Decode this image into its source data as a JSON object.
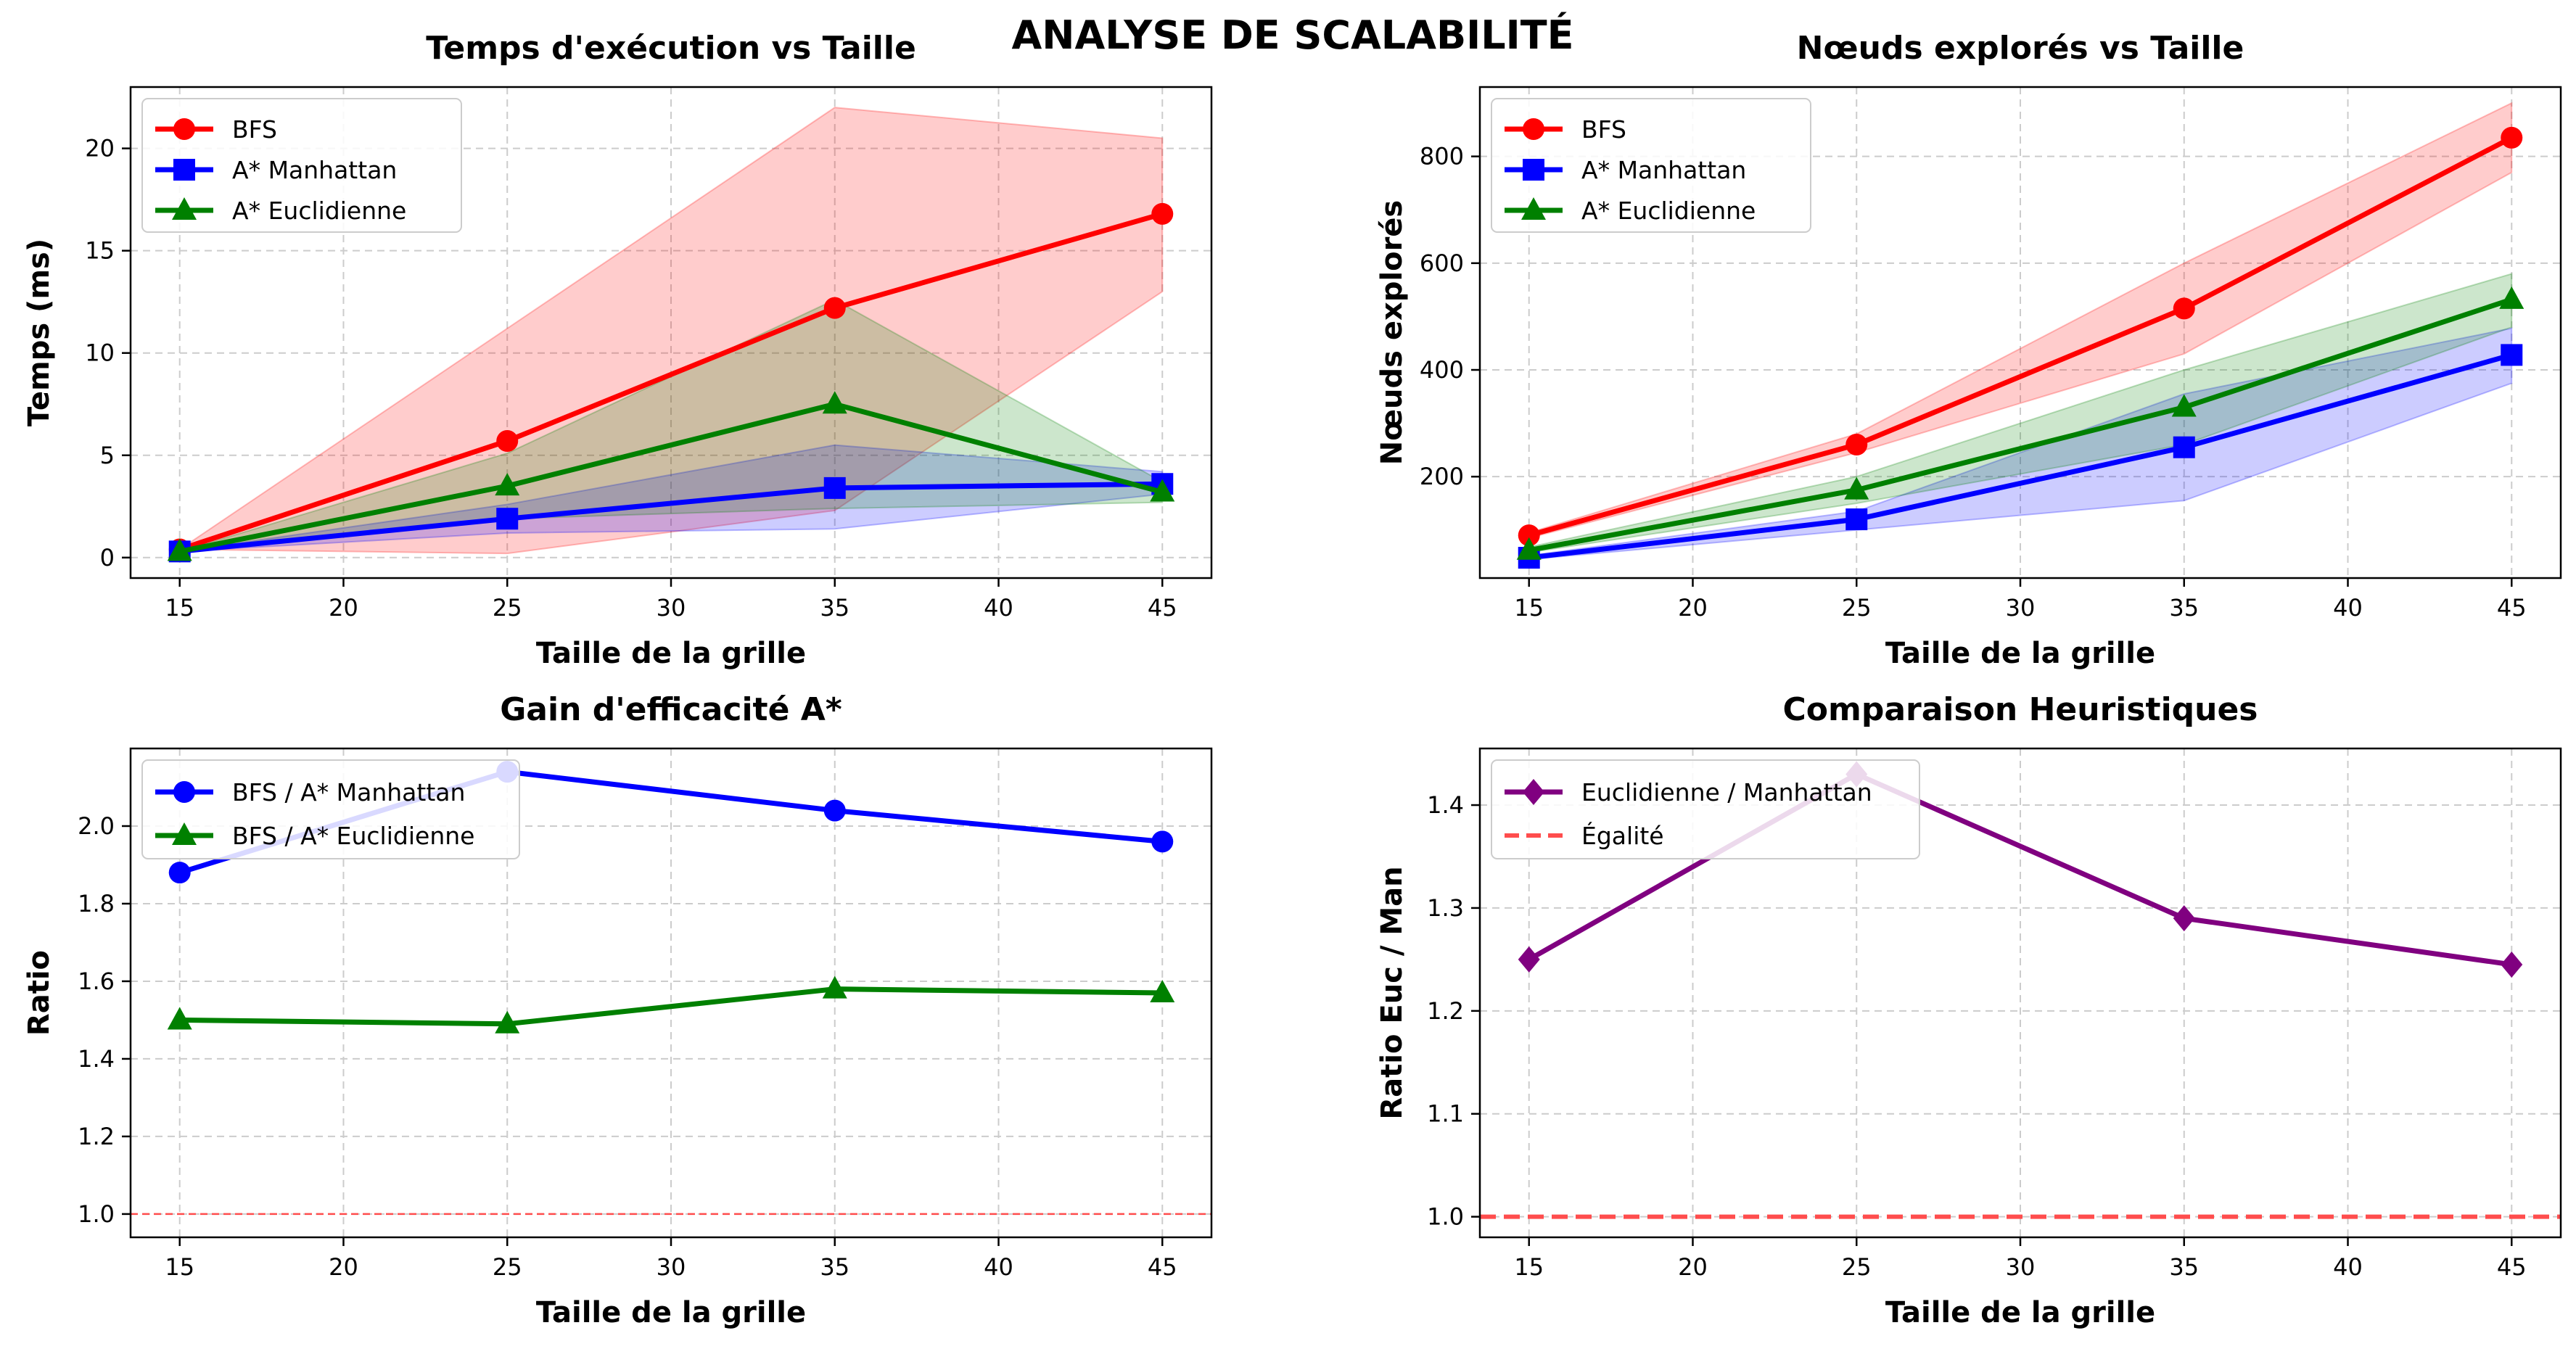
{
  "suptitle": "ANALYSE DE SCALABILITÉ",
  "colors": {
    "bfs": "#ff0000",
    "manhattan": "#0000ff",
    "euclid": "#008000",
    "ratio": "#800080",
    "equality": "#ff4d4d",
    "grid": "#b0b0b0"
  },
  "chart_data": [
    {
      "type": "line",
      "title": "Temps d'exécution vs Taille",
      "xlabel": "Taille de la grille",
      "ylabel": "Temps (ms)",
      "x": [
        15,
        25,
        35,
        45
      ],
      "xlim": [
        13.5,
        46.5
      ],
      "ylim": [
        -1.0,
        23.0
      ],
      "xticks": [
        15,
        20,
        25,
        30,
        35,
        40,
        45
      ],
      "yticks": [
        0,
        5,
        10,
        15,
        20
      ],
      "grid": true,
      "legend": "upper left",
      "series": [
        {
          "name": "BFS",
          "values": [
            0.4,
            5.7,
            12.2,
            16.8
          ],
          "band_low": [
            0.4,
            0.2,
            2.3,
            13.0
          ],
          "band_high": [
            0.4,
            11.2,
            22.0,
            20.5
          ],
          "marker": "circle",
          "color": "#ff0000"
        },
        {
          "name": "A* Manhattan",
          "values": [
            0.3,
            1.9,
            3.4,
            3.6
          ],
          "band_low": [
            0.3,
            1.2,
            1.4,
            3.1
          ],
          "band_high": [
            0.3,
            2.6,
            5.5,
            4.2
          ],
          "marker": "square",
          "color": "#0000ff"
        },
        {
          "name": "A* Euclidienne",
          "values": [
            0.3,
            3.5,
            7.5,
            3.2
          ],
          "band_low": [
            0.3,
            1.9,
            2.4,
            2.7
          ],
          "band_high": [
            0.3,
            5.1,
            12.6,
            3.7
          ],
          "marker": "triangle",
          "color": "#008000"
        }
      ]
    },
    {
      "type": "line",
      "title": "Nœuds explorés vs Taille",
      "xlabel": "Taille de la grille",
      "ylabel": "Nœuds explorés",
      "x": [
        15,
        25,
        35,
        45
      ],
      "xlim": [
        13.5,
        46.5
      ],
      "ylim": [
        10,
        930
      ],
      "xticks": [
        15,
        20,
        25,
        30,
        35,
        40,
        45
      ],
      "yticks": [
        200,
        400,
        600,
        800
      ],
      "grid": true,
      "legend": "upper left",
      "series": [
        {
          "name": "BFS",
          "values": [
            90,
            260,
            515,
            835
          ],
          "band_low": [
            85,
            245,
            430,
            770
          ],
          "band_high": [
            95,
            280,
            600,
            900
          ],
          "marker": "circle",
          "color": "#ff0000"
        },
        {
          "name": "A* Manhattan",
          "values": [
            48,
            120,
            255,
            428
          ],
          "band_low": [
            45,
            100,
            155,
            375
          ],
          "band_high": [
            52,
            135,
            355,
            478
          ],
          "marker": "square",
          "color": "#0000ff"
        },
        {
          "name": "A* Euclidienne",
          "values": [
            62,
            175,
            330,
            532
          ],
          "band_low": [
            58,
            150,
            260,
            480
          ],
          "band_high": [
            68,
            200,
            400,
            580
          ],
          "marker": "triangle",
          "color": "#008000"
        }
      ]
    },
    {
      "type": "line",
      "title": "Gain d'efficacité A*",
      "xlabel": "Taille de la grille",
      "ylabel": "Ratio",
      "x": [
        15,
        25,
        35,
        45
      ],
      "xlim": [
        13.5,
        46.5
      ],
      "ylim": [
        0.94,
        2.2
      ],
      "xticks": [
        15,
        20,
        25,
        30,
        35,
        40,
        45
      ],
      "yticks": [
        1.0,
        1.2,
        1.4,
        1.6,
        1.8,
        2.0
      ],
      "grid": true,
      "legend": "upper left",
      "hline": {
        "y": 1.0,
        "style": "dashed",
        "color": "#ff4d4d"
      },
      "series": [
        {
          "name": "BFS / A* Manhattan",
          "values": [
            1.88,
            2.14,
            2.04,
            1.96
          ],
          "marker": "circle",
          "color": "#0000ff"
        },
        {
          "name": "BFS / A* Euclidienne",
          "values": [
            1.5,
            1.49,
            1.58,
            1.57
          ],
          "marker": "triangle",
          "color": "#008000"
        }
      ]
    },
    {
      "type": "line",
      "title": "Comparaison Heuristiques",
      "xlabel": "Taille de la grille",
      "ylabel": "Ratio Euc / Man",
      "x": [
        15,
        25,
        35,
        45
      ],
      "xlim": [
        13.5,
        46.5
      ],
      "ylim": [
        0.98,
        1.455
      ],
      "xticks": [
        15,
        20,
        25,
        30,
        35,
        40,
        45
      ],
      "yticks": [
        1.0,
        1.1,
        1.2,
        1.3,
        1.4
      ],
      "grid": true,
      "legend": "upper left",
      "series": [
        {
          "name": "Euclidienne / Manhattan",
          "values": [
            1.25,
            1.43,
            1.29,
            1.245
          ],
          "marker": "diamond",
          "color": "#800080"
        }
      ],
      "hline": {
        "y": 1.0,
        "style": "dashed",
        "color": "#ff4d4d",
        "name": "Égalité"
      }
    }
  ]
}
